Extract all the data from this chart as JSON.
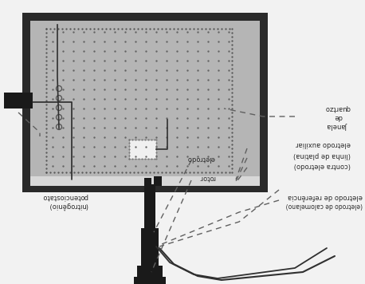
{
  "bg_color": "#f2f2f2",
  "cell_frame_color": "#2a2a2a",
  "cell_fill_color": "#b0b0b0",
  "cell_inner_fill": "#c8c8c8",
  "white": "#ffffff",
  "black": "#1a1a1a",
  "dot_color": "#606060",
  "wire_color": "#2a2a2a",
  "dash_color": "#606060",
  "text_color": "#2a2a2a",
  "label_quartzo": "Janela\nde\nquartzo",
  "label_auxiliar": "eletrodo auxiliar",
  "label_platina": "(linha de platina)",
  "label_contra": "(contra eletrodo)",
  "label_referencia": "eletrodo de referência",
  "label_calomelano": "(eletrodo de calomelano)",
  "label_eletrodo": "eletrodo",
  "label_rotor": "rotor",
  "label_potenciostato": "potenciostato",
  "label_nitrogenio": "(nitrogênio)"
}
